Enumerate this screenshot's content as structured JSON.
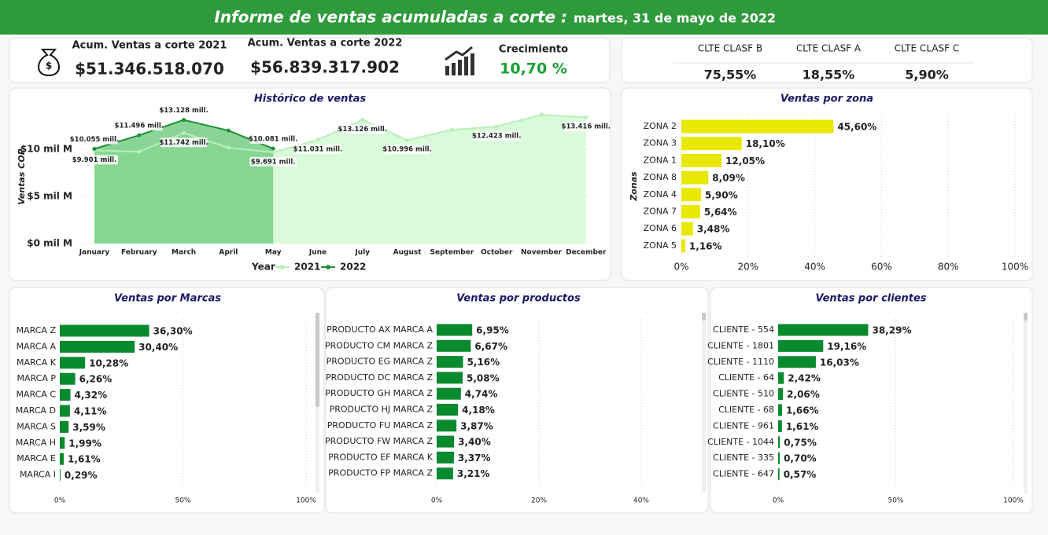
{
  "header": {
    "title": "Informe de ventas acumuladas a corte :",
    "date": "martes, 31 de mayo de 2022"
  },
  "kpis": [
    {
      "label": "Acum. Ventas a corte 2021",
      "value": "$51.346.518.070"
    },
    {
      "label": "Acum. Ventas a corte 2022",
      "value": "$56.839.317.902"
    },
    {
      "label": "Crecimiento",
      "value": "10,70 %"
    }
  ],
  "segments": {
    "columns": [
      "CLTE CLASF B",
      "CLTE CLASF A",
      "CLTE CLASF C"
    ],
    "values": [
      "75,55%",
      "18,55%",
      "5,90%"
    ]
  },
  "chart_data": [
    {
      "type": "area",
      "title": "Histórico de ventas",
      "y_label": "Ventas COP",
      "legend_title": "Year",
      "categories": [
        "January",
        "February",
        "March",
        "April",
        "May",
        "June",
        "July",
        "August",
        "September",
        "October",
        "November",
        "December"
      ],
      "series": [
        {
          "name": "2021",
          "color": "#b8f0b8",
          "values": [
            9901,
            9750,
            11742,
            10170,
            9691,
            11031,
            13126,
            10996,
            12080,
            12423,
            13670,
            13416
          ],
          "value_labels": [
            "$9.901 mill.",
            null,
            "$11.742 mill.",
            null,
            "$9.691 mill.",
            "$11.031 mill.",
            "$13.126 mill.",
            "$10.996 mill.",
            null,
            "$12.423 mill.",
            null,
            "$13.416 mill."
          ]
        },
        {
          "name": "2022",
          "color": "#1f8f3a",
          "values": [
            10055,
            11496,
            13128,
            12000,
            10081,
            null,
            null,
            null,
            null,
            null,
            null,
            null
          ],
          "value_labels": [
            "$10.055 mill.",
            "$11.496 mill.",
            "$13.128 mill.",
            null,
            "$10.081 mill.",
            null,
            null,
            null,
            null,
            null,
            null,
            null
          ]
        }
      ],
      "ylim": [
        0,
        14600
      ],
      "yticks": [
        {
          "value": 0,
          "label": "$0 mil M"
        },
        {
          "value": 5000,
          "label": "$5 mil M"
        },
        {
          "value": 10000,
          "label": "$10 mil M"
        }
      ]
    },
    {
      "type": "hbar",
      "title": "Ventas por zona",
      "y_label": "Zonas",
      "color": "#e8e800",
      "categories": [
        "ZONA 2",
        "ZONA 3",
        "ZONA 1",
        "ZONA 8",
        "ZONA 4",
        "ZONA 7",
        "ZONA 6",
        "ZONA 5"
      ],
      "values": [
        45.6,
        18.1,
        12.05,
        8.09,
        5.9,
        5.64,
        3.48,
        1.16
      ],
      "value_labels": [
        "45,60%",
        "18,10%",
        "12,05%",
        "8,09%",
        "5,90%",
        "5,64%",
        "3,48%",
        "1,16%"
      ],
      "xlim": [
        0,
        100
      ],
      "xticks": [
        {
          "value": 0,
          "label": "0%"
        },
        {
          "value": 20,
          "label": "20%"
        },
        {
          "value": 40,
          "label": "40%"
        },
        {
          "value": 60,
          "label": "60%"
        },
        {
          "value": 80,
          "label": "80%"
        },
        {
          "value": 100,
          "label": "100%"
        }
      ]
    },
    {
      "type": "hbar",
      "title": "Ventas por Marcas",
      "color": "#0a8a2e",
      "categories": [
        "MARCA Z",
        "MARCA A",
        "MARCA K",
        "MARCA P",
        "MARCA C",
        "MARCA D",
        "MARCA S",
        "MARCA H",
        "MARCA E",
        "MARCA I"
      ],
      "values": [
        36.3,
        30.4,
        10.28,
        6.26,
        4.32,
        4.11,
        3.59,
        1.99,
        1.61,
        0.29
      ],
      "value_labels": [
        "36,30%",
        "30,40%",
        "10,28%",
        "6,26%",
        "4,32%",
        "4,11%",
        "3,59%",
        "1,99%",
        "1,61%",
        "0,29%"
      ],
      "xlim": [
        0,
        100
      ],
      "xticks": [
        {
          "value": 0,
          "label": "0%"
        },
        {
          "value": 50,
          "label": "50%"
        },
        {
          "value": 100,
          "label": "100%"
        }
      ]
    },
    {
      "type": "hbar",
      "title": "Ventas por productos",
      "color": "#0a8a2e",
      "categories": [
        "PRODUCTO AX MARCA A",
        "PRODUCTO CM MARCA Z",
        "PRODUCTO EG MARCA Z",
        "PRODUCTO DC MARCA Z",
        "PRODUCTO GH MARCA Z",
        "PRODUCTO HJ MARCA Z",
        "PRODUCTO FU MARCA Z",
        "PRODUCTO FW MARCA Z",
        "PRODUCTO EF MARCA K",
        "PRODUCTO FP MARCA Z"
      ],
      "values": [
        6.95,
        6.67,
        5.16,
        5.08,
        4.74,
        4.18,
        3.87,
        3.4,
        3.37,
        3.21
      ],
      "value_labels": [
        "6,95%",
        "6,67%",
        "5,16%",
        "5,08%",
        "4,74%",
        "4,18%",
        "3,87%",
        "3,40%",
        "3,37%",
        "3,21%"
      ],
      "xlim": [
        0,
        50
      ],
      "xticks": [
        {
          "value": 0,
          "label": "0%"
        },
        {
          "value": 20,
          "label": "20%"
        },
        {
          "value": 40,
          "label": "40%"
        }
      ]
    },
    {
      "type": "hbar",
      "title": "Ventas por clientes",
      "color": "#0a8a2e",
      "categories": [
        "CLIENTE - 554",
        "CLIENTE - 1801",
        "CLIENTE - 1110",
        "CLIENTE - 64",
        "CLIENTE - 510",
        "CLIENTE - 68",
        "CLIENTE - 961",
        "CLIENTE - 1044",
        "CLIENTE - 335",
        "CLIENTE - 647"
      ],
      "values": [
        38.29,
        19.16,
        16.03,
        2.42,
        2.06,
        1.66,
        1.61,
        0.75,
        0.7,
        0.57
      ],
      "value_labels": [
        "38,29%",
        "19,16%",
        "16,03%",
        "2,42%",
        "2,06%",
        "1,66%",
        "1,61%",
        "0,75%",
        "0,70%",
        "0,57%"
      ],
      "xlim": [
        0,
        100
      ],
      "xticks": [
        {
          "value": 0,
          "label": "0%"
        },
        {
          "value": 50,
          "label": "50%"
        },
        {
          "value": 100,
          "label": "100%"
        }
      ]
    }
  ]
}
